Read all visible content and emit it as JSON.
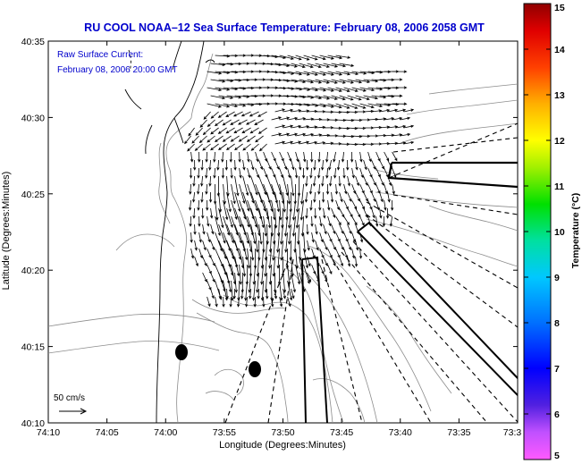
{
  "chart_data": {
    "type": "vector-field",
    "title": "RU COOL  NOAA–12  Sea Surface Temperature:  February 08, 2006 2058 GMT",
    "annotation": [
      "Raw Surface Current:",
      "February 08, 2006 20:00 GMT"
    ],
    "xlabel": "Longitude (Degrees:Minutes)",
    "ylabel": "Latitude (Degrees:Minutes)",
    "x_ticks": [
      "74:10",
      "74:05",
      "74:00",
      "73:55",
      "73:50",
      "73:45",
      "73:40",
      "73:35",
      "73:3"
    ],
    "y_ticks": [
      "40:35",
      "40:30",
      "40:25",
      "40:20",
      "40:15",
      "40:10"
    ],
    "xlim_minutes": [
      -4450,
      -4410
    ],
    "ylim_minutes": [
      2410,
      2435
    ],
    "scale_label": "50 cm/s",
    "colorbar": {
      "label": "Temperature (°C)",
      "ticks": [
        "15",
        "14",
        "13",
        "12",
        "11",
        "10",
        "9",
        "8",
        "7",
        "6",
        "5"
      ],
      "range": [
        5,
        15
      ]
    },
    "colors": {
      "title": "#0000cc",
      "annotation": "#0000cc",
      "vector": "#000000",
      "contour": "#888888"
    }
  }
}
